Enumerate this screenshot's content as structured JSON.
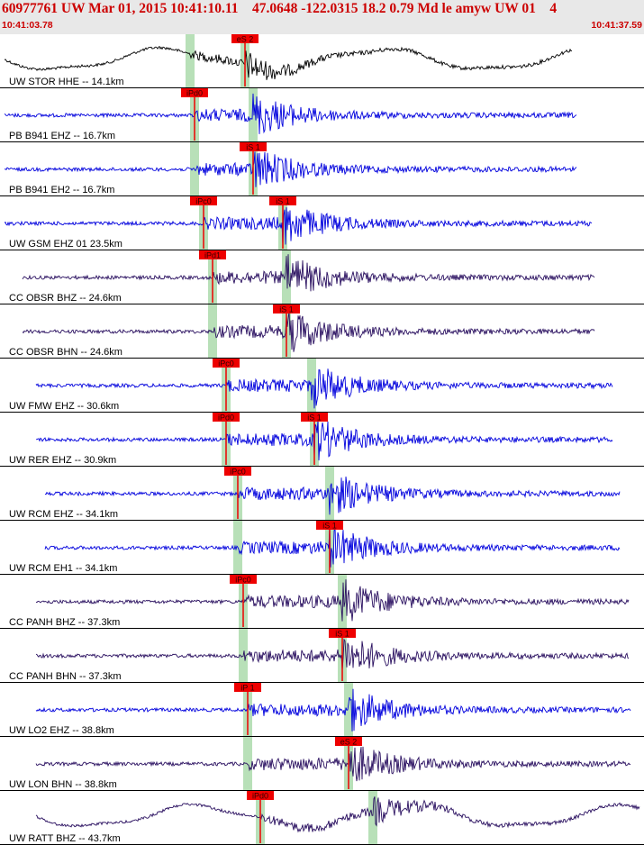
{
  "header": {
    "title": "60977761 UW Mar 01, 2015 10:41:10.11    47.0648 -122.0315 18.2 0.79 Md le amyw UW 01    4",
    "start_time": "10:41:03.78",
    "end_time": "10:41:37.59"
  },
  "chart_data": {
    "type": "line",
    "title": "60977761 UW Mar 01, 2015 10:41:10.11    47.0648 -122.0315 18.2 0.79 Md le amyw UW 01    4",
    "x_range": [
      "10:41:03.78",
      "10:41:37.59"
    ],
    "colors": {
      "blue": "#0000dd",
      "purple": "#2a1060",
      "black": "#000000",
      "pick": "#ee0000",
      "window": "#b8e0b8",
      "divider": "#000000"
    },
    "series": [
      {
        "name": "UW STOR HHE -- 14.1km",
        "color": "black",
        "green": [
          211,
          272
        ],
        "picks": [
          {
            "label": "eS 2",
            "x": 272
          }
        ],
        "lowfreq": true
      },
      {
        "name": "PB B941 EHZ -- 16.7km",
        "color": "blue",
        "green": [
          216,
          281
        ],
        "picks": [
          {
            "label": "iPd0",
            "x": 216
          }
        ]
      },
      {
        "name": "PB B941 EH2 -- 16.7km",
        "color": "blue",
        "green": [
          216,
          281
        ],
        "picks": [
          {
            "label": "iS 1",
            "x": 281
          }
        ]
      },
      {
        "name": "UW GSM EHZ 01 23.5km",
        "color": "blue",
        "green": [
          226,
          314
        ],
        "picks": [
          {
            "label": "iPc0",
            "x": 226
          },
          {
            "label": "iS 1",
            "x": 314
          }
        ]
      },
      {
        "name": "CC OBSR BHZ -- 24.6km",
        "color": "purple",
        "green": [
          236,
          318
        ],
        "picks": [
          {
            "label": "iPd1",
            "x": 236
          }
        ]
      },
      {
        "name": "CC OBSR BHN -- 24.6km",
        "color": "purple",
        "green": [
          236,
          318
        ],
        "picks": [
          {
            "label": "iS 1",
            "x": 318
          }
        ]
      },
      {
        "name": "UW FMW EHZ -- 30.6km",
        "color": "blue",
        "green": [
          251,
          346
        ],
        "picks": [
          {
            "label": "iPc0",
            "x": 251
          }
        ]
      },
      {
        "name": "UW RER EHZ -- 30.9km",
        "color": "blue",
        "green": [
          251,
          349
        ],
        "picks": [
          {
            "label": "iPd0",
            "x": 251
          },
          {
            "label": "iS 1",
            "x": 349
          }
        ]
      },
      {
        "name": "UW RCM EHZ -- 34.1km",
        "color": "blue",
        "green": [
          264,
          366
        ],
        "picks": [
          {
            "label": "iPc0",
            "x": 264
          }
        ]
      },
      {
        "name": "UW RCM EH1 -- 34.1km",
        "color": "blue",
        "green": [
          264,
          366
        ],
        "picks": [
          {
            "label": "iS 1",
            "x": 366
          }
        ]
      },
      {
        "name": "CC PANH BHZ -- 37.3km",
        "color": "purple",
        "green": [
          270,
          380
        ],
        "picks": [
          {
            "label": "iPc0",
            "x": 270
          }
        ]
      },
      {
        "name": "CC PANH BHN -- 37.3km",
        "color": "purple",
        "green": [
          270,
          380
        ],
        "picks": [
          {
            "label": "iS 1",
            "x": 380
          }
        ]
      },
      {
        "name": "UW LO2 EHZ -- 38.8km",
        "color": "blue",
        "green": [
          275,
          387
        ],
        "picks": [
          {
            "label": "iP 1",
            "x": 275
          }
        ]
      },
      {
        "name": "UW LON BHN -- 38.8km",
        "color": "purple",
        "green": [
          275,
          387
        ],
        "picks": [
          {
            "label": "eS 2",
            "x": 387
          }
        ]
      },
      {
        "name": "UW RATT BHZ -- 43.7km",
        "color": "purple",
        "green": [
          289,
          414
        ],
        "picks": [
          {
            "label": "iPd0",
            "x": 289
          }
        ],
        "lowfreq": true
      }
    ]
  }
}
